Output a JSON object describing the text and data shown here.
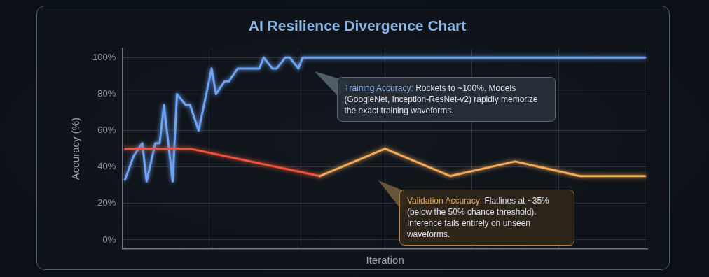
{
  "chart_data": {
    "type": "line",
    "title": "AI Resilience Divergence Chart",
    "xlabel": "Iteration",
    "ylabel": "Accuracy (%)",
    "categories": [
      null,
      null,
      null,
      null,
      null,
      null,
      null,
      null,
      null,
      null,
      null,
      null,
      null,
      null,
      null,
      null,
      null,
      null,
      null,
      null,
      null,
      null,
      null,
      null,
      null,
      null,
      null,
      null,
      null,
      null,
      null,
      null,
      null,
      null,
      null,
      null,
      null,
      null,
      null,
      null,
      null,
      null,
      null,
      null,
      null,
      null,
      null,
      null,
      null,
      null,
      null,
      null,
      null,
      null,
      null,
      null,
      null,
      null,
      null,
      null,
      null,
      null,
      null,
      null,
      null,
      null,
      null,
      null,
      null,
      null,
      null,
      null,
      null,
      null,
      null,
      null,
      null,
      null,
      null,
      null,
      null,
      null,
      null,
      null,
      null,
      null,
      null,
      null,
      null,
      null,
      null,
      null,
      null,
      null,
      null,
      null,
      null,
      null,
      null,
      null,
      null,
      null,
      null,
      null,
      null,
      null,
      null,
      null,
      null,
      null,
      null,
      null,
      null,
      null,
      null,
      null,
      null,
      null,
      null,
      null,
      null
    ],
    "ylim": [
      -5,
      105
    ],
    "yticks": [
      {
        "value": 0,
        "label": "0%"
      },
      {
        "value": 20,
        "label": "20%"
      },
      {
        "value": 40,
        "label": "40%"
      },
      {
        "value": 60,
        "label": "60%"
      },
      {
        "value": 80,
        "label": "80%"
      },
      {
        "value": 100,
        "label": "100%"
      }
    ],
    "tick_labels": "y",
    "grid": true,
    "legend": false,
    "marker": "none",
    "line_style": "solid",
    "series": [
      {
        "color": "#6fa4f5",
        "values": [
          33,
          null,
          46,
          null,
          53,
          32,
          null,
          53,
          53,
          74,
          null,
          32,
          80,
          null,
          74,
          74,
          null,
          60,
          null,
          null,
          94,
          80,
          null,
          87,
          87,
          null,
          94,
          null,
          null,
          null,
          null,
          94,
          100,
          null,
          94,
          94,
          null,
          100,
          100,
          null,
          94,
          100,
          null,
          null,
          null,
          null,
          null,
          null,
          null,
          null,
          null,
          null,
          null,
          null,
          null,
          null,
          null,
          null,
          null,
          null,
          null,
          null,
          null,
          null,
          null,
          null,
          null,
          null,
          null,
          null,
          null,
          null,
          null,
          null,
          null,
          null,
          null,
          null,
          null,
          null,
          null,
          null,
          null,
          null,
          null,
          null,
          null,
          null,
          null,
          null,
          null,
          null,
          null,
          null,
          null,
          null,
          null,
          null,
          null,
          null,
          null,
          null,
          null,
          null,
          null,
          null,
          null,
          null,
          null,
          null,
          null,
          null,
          null,
          null,
          null,
          null,
          null,
          null,
          null,
          null,
          100
        ]
      },
      {
        "color": "#f0533a",
        "values": [
          50,
          null,
          null,
          null,
          null,
          null,
          null,
          null,
          null,
          null,
          null,
          null,
          null,
          null,
          null,
          50,
          null,
          null,
          null,
          null,
          null,
          null,
          null,
          null,
          null,
          null,
          null,
          null,
          null,
          null,
          null,
          null,
          null,
          null,
          null,
          null,
          null,
          null,
          null,
          null,
          null,
          null,
          null,
          null,
          null,
          35,
          null,
          null,
          null,
          null,
          null,
          null,
          null,
          null,
          null,
          null,
          null,
          null,
          null,
          null,
          null,
          null,
          null,
          null,
          null,
          null,
          null,
          null,
          null,
          null,
          null,
          null,
          null,
          null,
          null,
          null,
          null,
          null,
          null,
          null,
          null,
          null,
          null,
          null,
          null,
          null,
          null,
          null,
          null,
          null,
          null,
          null,
          null,
          null,
          null,
          null,
          null,
          null,
          null,
          null,
          null,
          null,
          null,
          null,
          null,
          null,
          null,
          null,
          null,
          null,
          null,
          null,
          null,
          null,
          null,
          null,
          null,
          null,
          null,
          null,
          null
        ]
      },
      {
        "color": "#f2a95a",
        "values": [
          null,
          null,
          null,
          null,
          null,
          null,
          null,
          null,
          null,
          null,
          null,
          null,
          null,
          null,
          null,
          null,
          null,
          null,
          null,
          null,
          null,
          null,
          null,
          null,
          null,
          null,
          null,
          null,
          null,
          null,
          null,
          null,
          null,
          null,
          null,
          null,
          null,
          null,
          null,
          null,
          null,
          null,
          null,
          null,
          null,
          35,
          null,
          null,
          null,
          null,
          null,
          null,
          null,
          null,
          null,
          null,
          null,
          null,
          null,
          null,
          50,
          null,
          null,
          null,
          null,
          null,
          null,
          null,
          null,
          null,
          null,
          null,
          null,
          null,
          null,
          35,
          null,
          null,
          null,
          null,
          null,
          null,
          null,
          null,
          null,
          null,
          null,
          null,
          null,
          null,
          43,
          null,
          null,
          null,
          null,
          null,
          null,
          null,
          null,
          null,
          null,
          null,
          null,
          null,
          null,
          35,
          null,
          null,
          null,
          null,
          null,
          null,
          null,
          null,
          null,
          null,
          null,
          null,
          null,
          null,
          35
        ]
      }
    ],
    "annotations": [
      "Training Accuracy: Rockets to ~100%. Models (GoogleNet, Inception-ResNet-v2) rapidly memorize the exact training waveforms.",
      "Validation Accuracy: Flatlines at ~35% (below the 50% chance threshold). Inference fails entirely on unseen waveforms."
    ]
  }
}
